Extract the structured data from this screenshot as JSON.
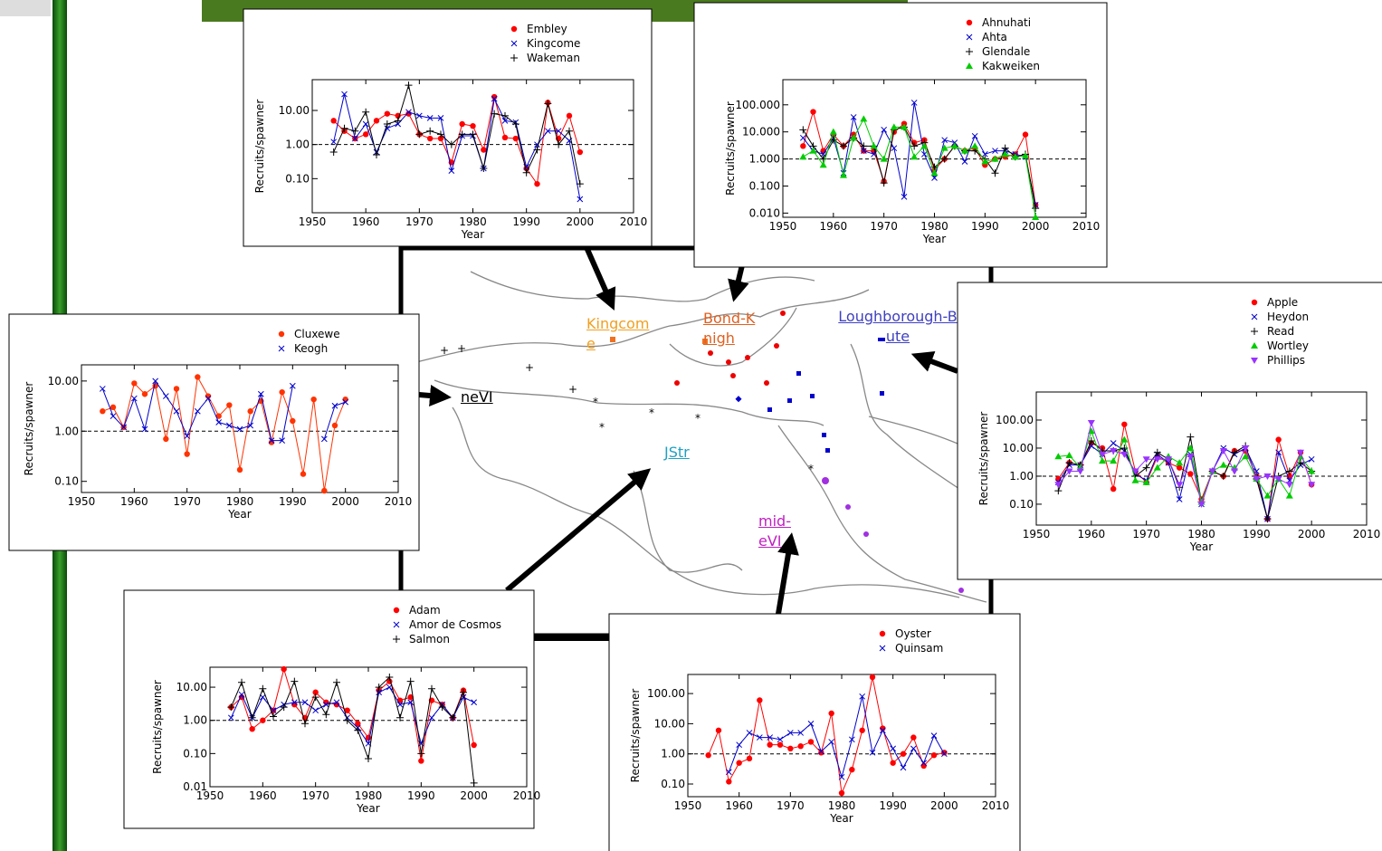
{
  "chart_data": [
    {
      "type": "line",
      "log_y": true,
      "grid": false,
      "legend": "top-right",
      "xlabel": "Year",
      "ylabel": "Recruits/spawner",
      "reference_line": 1,
      "x": [
        1954,
        1956,
        1958,
        1960,
        1962,
        1964,
        1966,
        1968,
        1970,
        1972,
        1974,
        1976,
        1978,
        1980,
        1982,
        1984,
        1986,
        1988,
        1990,
        1992,
        1994,
        1996,
        1998,
        2000
      ],
      "xlim": [
        1950,
        2010
      ],
      "xticks": [
        1950,
        1960,
        1970,
        1980,
        1990,
        2000,
        2010
      ],
      "ylim": [
        0.01,
        80
      ],
      "yticks": [
        {
          "value": 0.1,
          "label": "0.10"
        },
        {
          "value": 1,
          "label": "1.00"
        },
        {
          "value": 10,
          "label": "10.00"
        }
      ],
      "series": [
        {
          "name": "Embley",
          "color": "#ff0000",
          "marker": "circle",
          "values": [
            5,
            2.5,
            1.5,
            2,
            5,
            8,
            7,
            8,
            2,
            1.5,
            1.5,
            0.3,
            4,
            3.5,
            0.7,
            25,
            1.6,
            1.5,
            0.2,
            0.07,
            17,
            1.5,
            7,
            0.6
          ]
        },
        {
          "name": "Kingcome",
          "color": "#0000cc",
          "marker": "x",
          "values": [
            1.2,
            30,
            1.5,
            4,
            0.6,
            3,
            4,
            9,
            7,
            6,
            6,
            0.17,
            1.8,
            1.8,
            0.2,
            22,
            5,
            4.5,
            0.22,
            1,
            2.5,
            2.5,
            1.3,
            0.025
          ]
        },
        {
          "name": "Wakeman",
          "color": "#000000",
          "marker": "plus",
          "values": [
            0.6,
            3,
            2.5,
            9,
            0.5,
            4,
            5,
            55,
            2,
            2.5,
            2,
            1,
            2,
            2,
            0.2,
            8,
            7,
            4,
            0.15,
            0.7,
            16,
            1,
            2.5,
            0.07
          ]
        }
      ]
    },
    {
      "type": "line",
      "log_y": true,
      "grid": false,
      "legend": "top-right",
      "xlabel": "Year",
      "ylabel": "Recruits/spawner",
      "reference_line": 1,
      "x": [
        1954,
        1956,
        1958,
        1960,
        1962,
        1964,
        1966,
        1968,
        1970,
        1972,
        1974,
        1976,
        1978,
        1980,
        1982,
        1984,
        1986,
        1988,
        1990,
        1992,
        1994,
        1996,
        1998,
        2000
      ],
      "xlim": [
        1950,
        2010
      ],
      "xticks": [
        1950,
        1960,
        1970,
        1980,
        1990,
        2000,
        2010
      ],
      "ylim": [
        0.007,
        850
      ],
      "yticks": [
        {
          "value": 0.01,
          "label": "0.010"
        },
        {
          "value": 0.1,
          "label": "0.100"
        },
        {
          "value": 1,
          "label": "1.000"
        },
        {
          "value": 10,
          "label": "10.000"
        },
        {
          "value": 100,
          "label": "100.000"
        }
      ],
      "series": [
        {
          "name": "Ahnuhati",
          "color": "#ff0000",
          "marker": "circle",
          "values": [
            3,
            55,
            2,
            8,
            3,
            8,
            2,
            2,
            0.15,
            10,
            20,
            4,
            5,
            0.4,
            1,
            3,
            2,
            2.5,
            0.6,
            1,
            1.2,
            1.5,
            8,
            0.02
          ]
        },
        {
          "name": "Ahta",
          "color": "#0000cc",
          "marker": "x",
          "values": [
            6,
            2,
            1.5,
            6,
            0.3,
            35,
            2,
            1.5,
            12,
            2.5,
            0.04,
            120,
            1.5,
            0.2,
            5,
            4,
            0.8,
            7,
            1.5,
            2,
            2,
            1.5,
            1.2,
            0.02
          ]
        },
        {
          "name": "Glendale",
          "color": "#000000",
          "marker": "plus",
          "values": [
            12,
            3,
            1,
            5,
            3,
            6,
            3,
            3,
            0.13,
            12,
            15,
            3,
            4,
            0.5,
            1,
            3,
            2,
            2,
            1,
            0.3,
            2.5,
            1.2,
            1.5,
            0.015
          ]
        },
        {
          "name": "Kakweiken",
          "color": "#00cc00",
          "marker": "triangle",
          "values": [
            1.2,
            2,
            0.6,
            10,
            0.25,
            6,
            30,
            3,
            1,
            15,
            15,
            1.2,
            3,
            0.3,
            2.5,
            3,
            2,
            3,
            0.8,
            1,
            1.5,
            1.2,
            1.3,
            0.007
          ]
        }
      ]
    },
    {
      "type": "line",
      "log_y": true,
      "grid": false,
      "legend": "top-right",
      "xlabel": "Year",
      "ylabel": "Recruits/spawner",
      "reference_line": 1,
      "x": [
        1954,
        1956,
        1958,
        1960,
        1962,
        1964,
        1966,
        1968,
        1970,
        1972,
        1974,
        1976,
        1978,
        1980,
        1982,
        1984,
        1986,
        1988,
        1990,
        1992,
        1994,
        1996,
        1998,
        2000
      ],
      "xlim": [
        1950,
        2010
      ],
      "xticks": [
        1950,
        1960,
        1970,
        1980,
        1990,
        2000,
        2010
      ],
      "ylim": [
        0.06,
        21
      ],
      "yticks": [
        {
          "value": 0.1,
          "label": "0.10"
        },
        {
          "value": 1,
          "label": "1.00"
        },
        {
          "value": 10,
          "label": "10.00"
        }
      ],
      "series": [
        {
          "name": "Cluxewe",
          "color": "#ff3300",
          "marker": "circle",
          "values": [
            2.5,
            3,
            1.2,
            9,
            5.5,
            8,
            0.7,
            7,
            0.35,
            12,
            5,
            2,
            3.3,
            0.17,
            2.5,
            4,
            0.6,
            6,
            1.6,
            0.14,
            4.3,
            0.065,
            1.3,
            4.3
          ]
        },
        {
          "name": "Keogh",
          "color": "#0000cc",
          "marker": "x",
          "values": [
            7,
            2,
            1.2,
            4.5,
            1.1,
            10,
            5,
            2.5,
            0.8,
            2.5,
            4.5,
            1.5,
            1.3,
            1.1,
            1.3,
            5.5,
            0.65,
            0.65,
            8,
            null,
            null,
            0.7,
            3.2,
            3.8
          ]
        }
      ]
    },
    {
      "type": "line",
      "log_y": true,
      "grid": false,
      "legend": "top-right",
      "xlabel": "Year",
      "ylabel": "Recruits/spawner",
      "reference_line": 1,
      "x": [
        1954,
        1956,
        1958,
        1960,
        1962,
        1964,
        1966,
        1968,
        1970,
        1972,
        1974,
        1976,
        1978,
        1980,
        1982,
        1984,
        1986,
        1988,
        1990,
        1992,
        1994,
        1996,
        1998,
        2000
      ],
      "xlim": [
        1950,
        2010
      ],
      "xticks": [
        1950,
        1960,
        1970,
        1980,
        1990,
        2000,
        2010
      ],
      "ylim": [
        0.018,
        1000
      ],
      "yticks": [
        {
          "value": 0.1,
          "label": "0.10"
        },
        {
          "value": 1,
          "label": "1.00"
        },
        {
          "value": 10,
          "label": "10.00"
        },
        {
          "value": 100,
          "label": "100.00"
        }
      ],
      "series": [
        {
          "name": "Apple",
          "color": "#ff0000",
          "marker": "circle",
          "values": [
            0.8,
            3,
            2.5,
            15,
            10,
            0.35,
            70,
            1.5,
            0.6,
            5,
            3,
            2,
            1.2,
            0.15,
            1.5,
            1,
            8,
            8,
            1,
            0.03,
            20,
            1,
            7,
            0.5
          ]
        },
        {
          "name": "Heydon",
          "color": "#0000cc",
          "marker": "x",
          "values": [
            0.6,
            2.5,
            2.5,
            12,
            6,
            15,
            8,
            1.2,
            0.7,
            6,
            3,
            0.15,
            6,
            0.1,
            1.5,
            10,
            6,
            10,
            1.5,
            0.03,
            7,
            0.7,
            2.5,
            4
          ]
        },
        {
          "name": "Read",
          "color": "#000000",
          "marker": "plus",
          "values": [
            0.3,
            3,
            2.5,
            18,
            8,
            8,
            10,
            1,
            2,
            7,
            4,
            0.4,
            25,
            0.12,
            1.5,
            1,
            7,
            12,
            0.8,
            0.03,
            1,
            1.5,
            3,
            1.5
          ]
        },
        {
          "name": "Wortley",
          "color": "#00cc00",
          "marker": "triangle",
          "values": [
            5,
            5.5,
            2,
            40,
            3.5,
            3.5,
            20,
            0.7,
            0.6,
            2,
            5,
            3,
            10,
            0.12,
            1.5,
            2.5,
            2,
            5,
            0.8,
            0.2,
            0.8,
            0.2,
            5,
            1.5
          ]
        },
        {
          "name": "Phillips",
          "color": "#9933ff",
          "marker": "triangle-down",
          "values": [
            0.5,
            1.5,
            1.5,
            80,
            6,
            8,
            6,
            1.5,
            4,
            4,
            4,
            0.5,
            5,
            0.1,
            1.5,
            8,
            1.5,
            10,
            0.8,
            1,
            0.8,
            0.5,
            7,
            0.5
          ]
        }
      ]
    },
    {
      "type": "line",
      "log_y": true,
      "grid": false,
      "legend": "top-right",
      "xlabel": "Year",
      "ylabel": "Recruits/spawner",
      "reference_line": 1,
      "x": [
        1954,
        1956,
        1958,
        1960,
        1962,
        1964,
        1966,
        1968,
        1970,
        1972,
        1974,
        1976,
        1978,
        1980,
        1982,
        1984,
        1986,
        1988,
        1990,
        1992,
        1994,
        1996,
        1998,
        2000
      ],
      "xlim": [
        1950,
        2010
      ],
      "xticks": [
        1950,
        1960,
        1970,
        1980,
        1990,
        2000,
        2010
      ],
      "ylim": [
        0.01,
        40
      ],
      "yticks": [
        0.01,
        {
          "value": 0.1,
          "label": "0.10"
        },
        {
          "value": 1,
          "label": "1.00"
        },
        {
          "value": 10,
          "label": "10.00"
        }
      ],
      "series": [
        {
          "name": "Adam",
          "color": "#ff0000",
          "marker": "circle",
          "values": [
            2.5,
            5,
            0.55,
            1,
            2,
            35,
            3,
            1.2,
            7,
            3.5,
            3,
            2,
            0.8,
            0.3,
            8,
            15,
            4,
            5,
            0.06,
            4,
            3,
            1.2,
            8,
            0.18
          ]
        },
        {
          "name": "Amor de Cosmos",
          "color": "#0000cc",
          "marker": "x",
          "values": [
            1.2,
            6,
            1.2,
            5,
            2,
            3,
            3.5,
            3.5,
            2,
            3,
            3.5,
            1.2,
            0.6,
            0.2,
            7,
            10,
            3,
            3.5,
            0.2,
            1.2,
            3,
            1.2,
            5,
            3.5
          ]
        },
        {
          "name": "Salmon",
          "color": "#000000",
          "marker": "plus",
          "values": [
            2.5,
            14,
            1.2,
            9,
            1.3,
            2.5,
            15,
            0.8,
            5,
            1.5,
            14,
            1,
            0.5,
            0.07,
            10,
            20,
            1.2,
            15,
            0.1,
            9,
            2.5,
            1.2,
            7,
            0.013
          ]
        }
      ]
    },
    {
      "type": "line",
      "log_y": true,
      "grid": false,
      "legend": "top-right",
      "xlabel": "Year",
      "ylabel": "Recruits/spawner",
      "reference_line": 1,
      "x": [
        1954,
        1956,
        1958,
        1960,
        1962,
        1964,
        1966,
        1968,
        1970,
        1972,
        1974,
        1976,
        1978,
        1980,
        1982,
        1984,
        1986,
        1988,
        1990,
        1992,
        1994,
        1996,
        1998,
        2000
      ],
      "xlim": [
        1950,
        2010
      ],
      "xticks": [
        1950,
        1960,
        1970,
        1980,
        1990,
        2000,
        2010
      ],
      "ylim": [
        0.038,
        430
      ],
      "yticks": [
        {
          "value": 0.1,
          "label": "0.10"
        },
        {
          "value": 1,
          "label": "1.00"
        },
        {
          "value": 10,
          "label": "10.00"
        },
        {
          "value": 100,
          "label": "100.00"
        }
      ],
      "series": [
        {
          "name": "Oyster",
          "color": "#ff0000",
          "marker": "circle",
          "values": [
            0.9,
            6,
            0.12,
            0.5,
            0.7,
            60,
            2,
            2,
            1.5,
            1.8,
            2.5,
            1.1,
            22,
            0.05,
            0.3,
            6,
            350,
            7,
            0.5,
            1,
            3.5,
            0.4,
            0.9,
            1.1
          ]
        },
        {
          "name": "Quinsam",
          "color": "#0000cc",
          "marker": "x",
          "values": [
            null,
            null,
            0.25,
            2,
            5,
            3.5,
            3.5,
            3,
            5,
            5,
            10,
            1.2,
            2.5,
            0.17,
            3,
            80,
            1.1,
            6,
            1.5,
            0.35,
            1.5,
            0.5,
            4,
            1
          ]
        }
      ]
    }
  ],
  "map_labels": [
    "Kingcome",
    "Bond-Knigh",
    "Loughborough-Bute",
    "neVI",
    "JStr",
    "mid-eVI"
  ]
}
